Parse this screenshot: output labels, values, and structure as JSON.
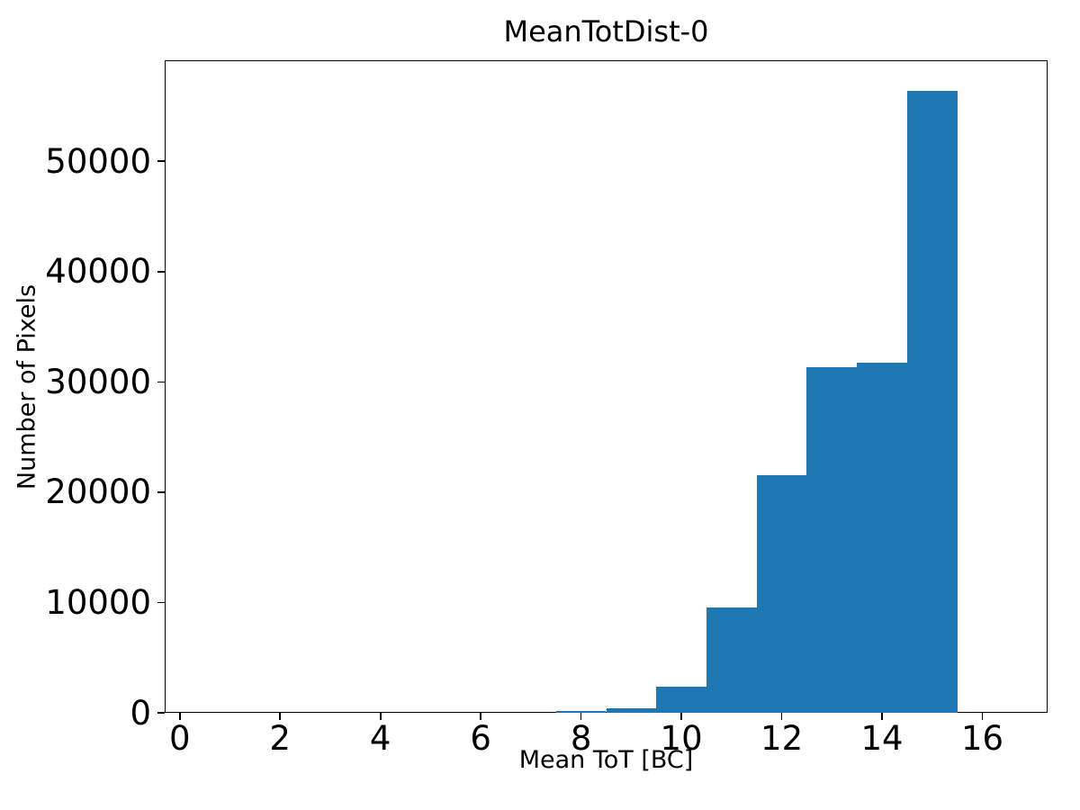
{
  "chart_data": {
    "type": "bar",
    "subtype": "histogram",
    "title": "MeanTotDist-0",
    "xlabel": "Mean ToT [BC]",
    "ylabel": "Number of Pixels",
    "bar_color": "#1f77b4",
    "bin_width": 1,
    "bin_centers": [
      1,
      2,
      3,
      4,
      5,
      6,
      7,
      8,
      9,
      10,
      11,
      12,
      13,
      14,
      15,
      16
    ],
    "counts": [
      0,
      0,
      0,
      0,
      0,
      0,
      0,
      130,
      390,
      2400,
      9550,
      21550,
      31350,
      31750,
      56400,
      0
    ],
    "x_ticks": [
      0,
      2,
      4,
      6,
      8,
      10,
      12,
      14,
      16
    ],
    "y_ticks": [
      0,
      10000,
      20000,
      30000,
      40000,
      50000
    ],
    "xlim": [
      -0.3,
      17.3
    ],
    "ylim": [
      0,
      59160
    ],
    "grid": false,
    "legend": null
  }
}
